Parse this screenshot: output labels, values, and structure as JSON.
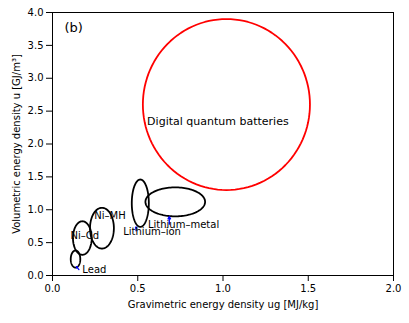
{
  "chart_data": {
    "type": "ellipse",
    "title": "(b)",
    "x_label": "Gravimetric energy density ug [MJ/kg]",
    "y_label": "Volumetric energy density u [GJ/m³]",
    "xlim": [
      0,
      2.0
    ],
    "ylim": [
      0,
      4
    ],
    "xticks": [
      {
        "value": 0,
        "label": "0.0"
      },
      {
        "value": 0.5,
        "label": "0.5"
      },
      {
        "value": 1.0,
        "label": "1.0"
      },
      {
        "value": 1.5,
        "label": "1.5"
      },
      {
        "value": 2.0,
        "label": "2.0"
      }
    ],
    "yticks": [
      {
        "value": 0,
        "label": "0.0"
      },
      {
        "value": 0.5,
        "label": "0.5"
      },
      {
        "value": 1.0,
        "label": "1.0"
      },
      {
        "value": 1.5,
        "label": "1.5"
      },
      {
        "value": 2.0,
        "label": "2.0"
      },
      {
        "value": 2.5,
        "label": "2.5"
      },
      {
        "value": 3.0,
        "label": "3.0"
      },
      {
        "value": 3.5,
        "label": "3.5"
      },
      {
        "value": 4.0,
        "label": "4.0"
      }
    ],
    "ellipses": [
      {
        "cx": 1.02,
        "cy": 2.6,
        "rx": 0.49,
        "ry": 1.3,
        "color": "red",
        "label": "Digital quantum batteries",
        "label_x": 0.97,
        "label_y": 2.35
      },
      {
        "cx": 0.135,
        "cy": 0.25,
        "rx": 0.028,
        "ry": 0.13,
        "color": "black"
      },
      {
        "cx": 0.175,
        "cy": 0.57,
        "rx": 0.055,
        "ry": 0.255,
        "color": "black"
      },
      {
        "cx": 0.29,
        "cy": 0.72,
        "rx": 0.07,
        "ry": 0.31,
        "color": "black"
      },
      {
        "cx": 0.515,
        "cy": 1.1,
        "rx": 0.05,
        "ry": 0.36,
        "color": "black"
      },
      {
        "cx": 0.72,
        "cy": 1.12,
        "rx": 0.175,
        "ry": 0.22,
        "color": "black"
      }
    ],
    "annotations": [
      {
        "text": "Lead",
        "x": 0.175,
        "y": 0.04,
        "arrow_color": "blue",
        "arrow": {
          "x1": 0.155,
          "y1": 0.09,
          "x2": 0.14,
          "y2": 0.135
        }
      },
      {
        "text": "Ni–Cd",
        "x": 0.105,
        "y": 0.55
      },
      {
        "text": "Ni–MH",
        "x": 0.245,
        "y": 0.86
      },
      {
        "text": "Lithium–ion",
        "x": 0.415,
        "y": 0.62,
        "arrow_color": "blue",
        "arrow": {
          "x1": 0.49,
          "y1": 0.68,
          "x2": 0.49,
          "y2": 0.74
        }
      },
      {
        "text": "Lithium–metal",
        "x": 0.56,
        "y": 0.72,
        "arrow_color": "blue",
        "arrow": {
          "x1": 0.685,
          "y1": 0.78,
          "x2": 0.685,
          "y2": 0.895
        }
      }
    ]
  }
}
